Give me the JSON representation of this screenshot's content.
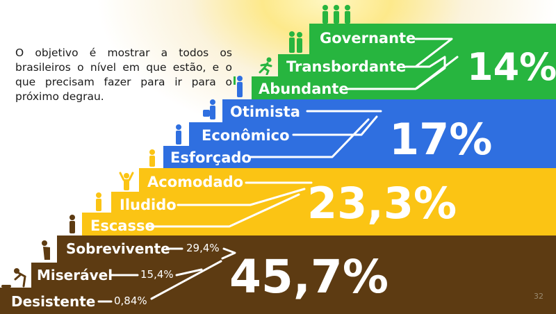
{
  "intro_text": "O objetivo é mostrar a todos os brasileiros o nível em que estão, e o que precisam fazer para ir para o próximo degrau.",
  "page_number": "32",
  "colors": {
    "green": "#27b53f",
    "blue": "#2f6fe0",
    "yellow": "#fbc414",
    "brown": "#5d3b12",
    "white": "#ffffff"
  },
  "tiers": [
    {
      "percent": "14%",
      "steps": [
        {
          "label": "Governante"
        },
        {
          "label": "Transbordante"
        },
        {
          "label": "Abundante"
        }
      ]
    },
    {
      "percent": "17%",
      "steps": [
        {
          "label": "Otimista"
        },
        {
          "label": "Econômico"
        },
        {
          "label": "Esforçado"
        }
      ]
    },
    {
      "percent": "23,3%",
      "steps": [
        {
          "label": "Acomodado"
        },
        {
          "label": "Iludido"
        },
        {
          "label": "Escasso"
        }
      ]
    },
    {
      "percent": "45,7%",
      "steps": [
        {
          "label": "Sobrevivente",
          "percent": "29,4%"
        },
        {
          "label": "Miserável",
          "percent": "15,4%"
        },
        {
          "label": "Desistente",
          "percent": "0,84%"
        }
      ]
    }
  ],
  "icons": [
    "three-figures-icon",
    "walking-person-icon",
    "running-person-icon",
    "person-with-tablet-icon",
    "person-with-bag-icon",
    "person-pointing-icon",
    "reading-person-icon",
    "person-celebrating-icon",
    "thinking-person-icon",
    "sitting-person-icon",
    "tired-person-icon",
    "person-bending-icon",
    "person-falling-icon"
  ]
}
